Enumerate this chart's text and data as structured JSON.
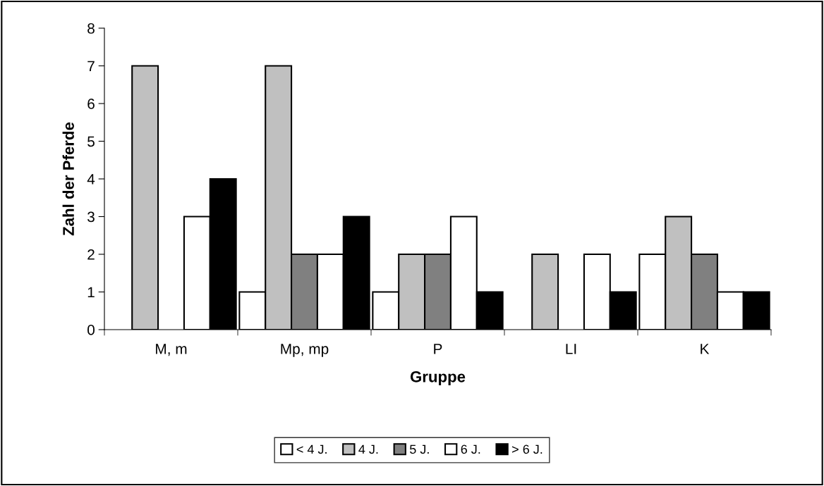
{
  "chart_data": {
    "type": "bar",
    "xlabel": "Gruppe",
    "ylabel": "Zahl der Pferde",
    "categories": [
      "M, m",
      "Mp, mp",
      "P",
      "LI",
      "K"
    ],
    "series": [
      {
        "name": "< 4 J.",
        "color": "#ffffff",
        "values": [
          null,
          1,
          1,
          null,
          2
        ]
      },
      {
        "name": "4 J.",
        "color": "#c0c0c0",
        "values": [
          7,
          7,
          2,
          2,
          3
        ]
      },
      {
        "name": "5 J.",
        "color": "#808080",
        "values": [
          null,
          2,
          2,
          null,
          2
        ]
      },
      {
        "name": "6 J.",
        "color": "#ffffff",
        "values": [
          3,
          2,
          3,
          2,
          1
        ]
      },
      {
        "name": "> 6 J.",
        "color": "#000000",
        "values": [
          4,
          3,
          1,
          1,
          1
        ]
      }
    ],
    "ylim": [
      0,
      8
    ],
    "yticks": [
      0,
      1,
      2,
      3,
      4,
      5,
      6,
      7,
      8
    ],
    "grid": false,
    "legend": "bottom"
  }
}
